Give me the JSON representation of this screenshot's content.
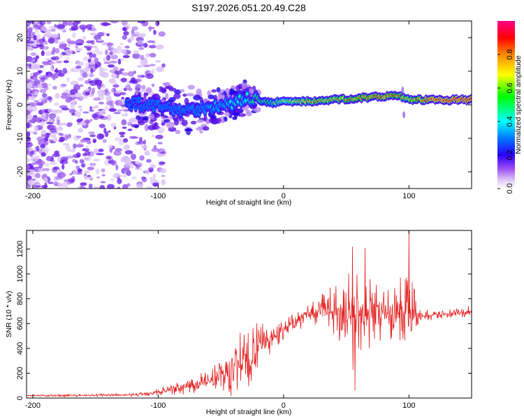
{
  "figure_title": "S197.2026.051.20.49.C28",
  "chart_data": [
    {
      "type": "heatmap",
      "title": "S197.2026.051.20.49.C28",
      "xlabel": "Height of straight line (km)",
      "ylabel": "Frequency (Hz)",
      "xlim": [
        -205,
        150
      ],
      "ylim": [
        -25,
        25
      ],
      "x_ticks": [
        -200,
        -100,
        0,
        100
      ],
      "y_ticks": [
        -20,
        -10,
        0,
        10,
        20
      ],
      "colorbar": {
        "label": "Normalized spectral amplitude",
        "range": [
          0,
          1
        ],
        "ticks": [
          0.0,
          0.2,
          0.4,
          0.6,
          0.8
        ],
        "colors": [
          "#ffffff",
          "#e0c8f8",
          "#7b2ff0",
          "#2a00ff",
          "#0077ff",
          "#00ffff",
          "#00ff00",
          "#ffff00",
          "#ff8800",
          "#ff0000",
          "#ff0088"
        ]
      },
      "ridge": {
        "x": [
          -120,
          -100,
          -80,
          -60,
          -40,
          -30,
          -20,
          -10,
          0,
          20,
          40,
          60,
          80,
          90,
          100,
          120,
          150
        ],
        "y": [
          0.5,
          -0.5,
          -1.5,
          -1,
          0.5,
          2,
          1.5,
          0.5,
          1,
          1,
          1.5,
          2,
          2.5,
          3,
          1.5,
          1.5,
          1.5
        ],
        "peak_amplitude": [
          0.25,
          0.3,
          0.3,
          0.35,
          0.4,
          0.45,
          0.55,
          0.6,
          0.7,
          0.8,
          0.8,
          0.85,
          0.9,
          0.85,
          0.8,
          0.95,
          0.95
        ]
      }
    },
    {
      "type": "line",
      "xlabel": "Height of straight line (km)",
      "ylabel": "SNR (10 * v/v)",
      "xlim": [
        -205,
        150
      ],
      "ylim": [
        0,
        1350
      ],
      "x_ticks": [
        -200,
        -100,
        0,
        100
      ],
      "y_ticks": [
        0,
        200,
        400,
        600,
        800,
        1000,
        1200
      ],
      "series": [
        {
          "name": "SNR",
          "color": "#e32020",
          "envelope": {
            "x": [
              -205,
              -120,
              -100,
              -80,
              -60,
              -40,
              -30,
              -20,
              -10,
              0,
              10,
              20,
              30,
              40,
              50,
              55,
              60,
              70,
              80,
              90,
              95,
              100,
              110,
              130,
              150
            ],
            "baseline": [
              18,
              25,
              50,
              90,
              140,
              230,
              290,
              400,
              480,
              560,
              620,
              680,
              700,
              700,
              690,
              650,
              700,
              690,
              680,
              690,
              700,
              680,
              660,
              680,
              690
            ],
            "spread": [
              10,
              15,
              40,
              70,
              120,
              250,
              400,
              300,
              120,
              100,
              100,
              80,
              150,
              220,
              350,
              500,
              450,
              300,
              250,
              250,
              450,
              400,
              50,
              50,
              60
            ]
          },
          "notable_peaks": [
            {
              "x": 55,
              "y": 1220
            },
            {
              "x": 65,
              "y": 1210
            },
            {
              "x": 100,
              "y": 1350
            },
            {
              "x": 57,
              "y": 60
            }
          ]
        }
      ]
    }
  ]
}
